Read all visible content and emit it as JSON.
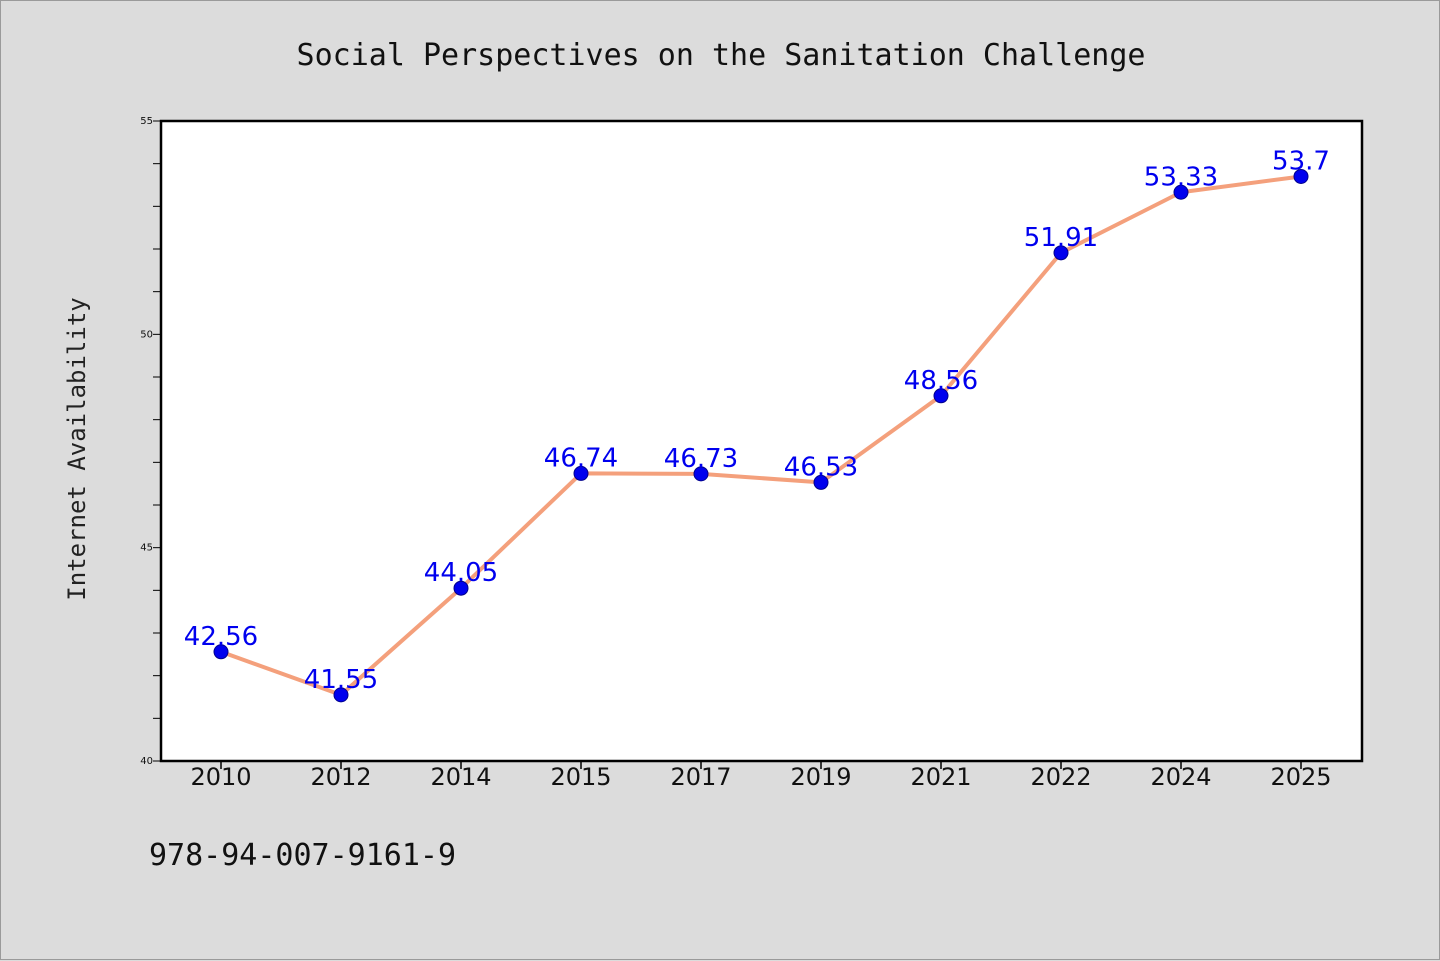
{
  "chart_data": {
    "type": "line",
    "title": "Social Perspectives on the Sanitation Challenge",
    "xlabel": "",
    "ylabel": "Internet Availability",
    "categories": [
      "2010",
      "2012",
      "2014",
      "2015",
      "2017",
      "2019",
      "2021",
      "2022",
      "2024",
      "2025"
    ],
    "series": [
      {
        "values": [
          42.56,
          41.55,
          44.05,
          46.74,
          46.73,
          46.53,
          48.56,
          51.91,
          53.33,
          53.7
        ],
        "labels": [
          "42.56",
          "41.55",
          "44.05",
          "46.74",
          "46.73",
          "46.53",
          "48.56",
          "51.91",
          "53.33",
          "53.7"
        ]
      }
    ],
    "ylim": [
      40,
      55
    ],
    "yticks": [
      {
        "value": 40,
        "label": "40"
      },
      {
        "value": 45,
        "label": "45"
      },
      {
        "value": 50,
        "label": "50"
      },
      {
        "value": 55,
        "label": "55"
      }
    ],
    "y_minor_step": 1,
    "grid": false,
    "colors": {
      "line": "#f4a07c",
      "marker": "#0000ee",
      "marker_edge": "#00008b",
      "label": "#0000ee"
    },
    "footnote": "978-94-007-9161-9"
  }
}
